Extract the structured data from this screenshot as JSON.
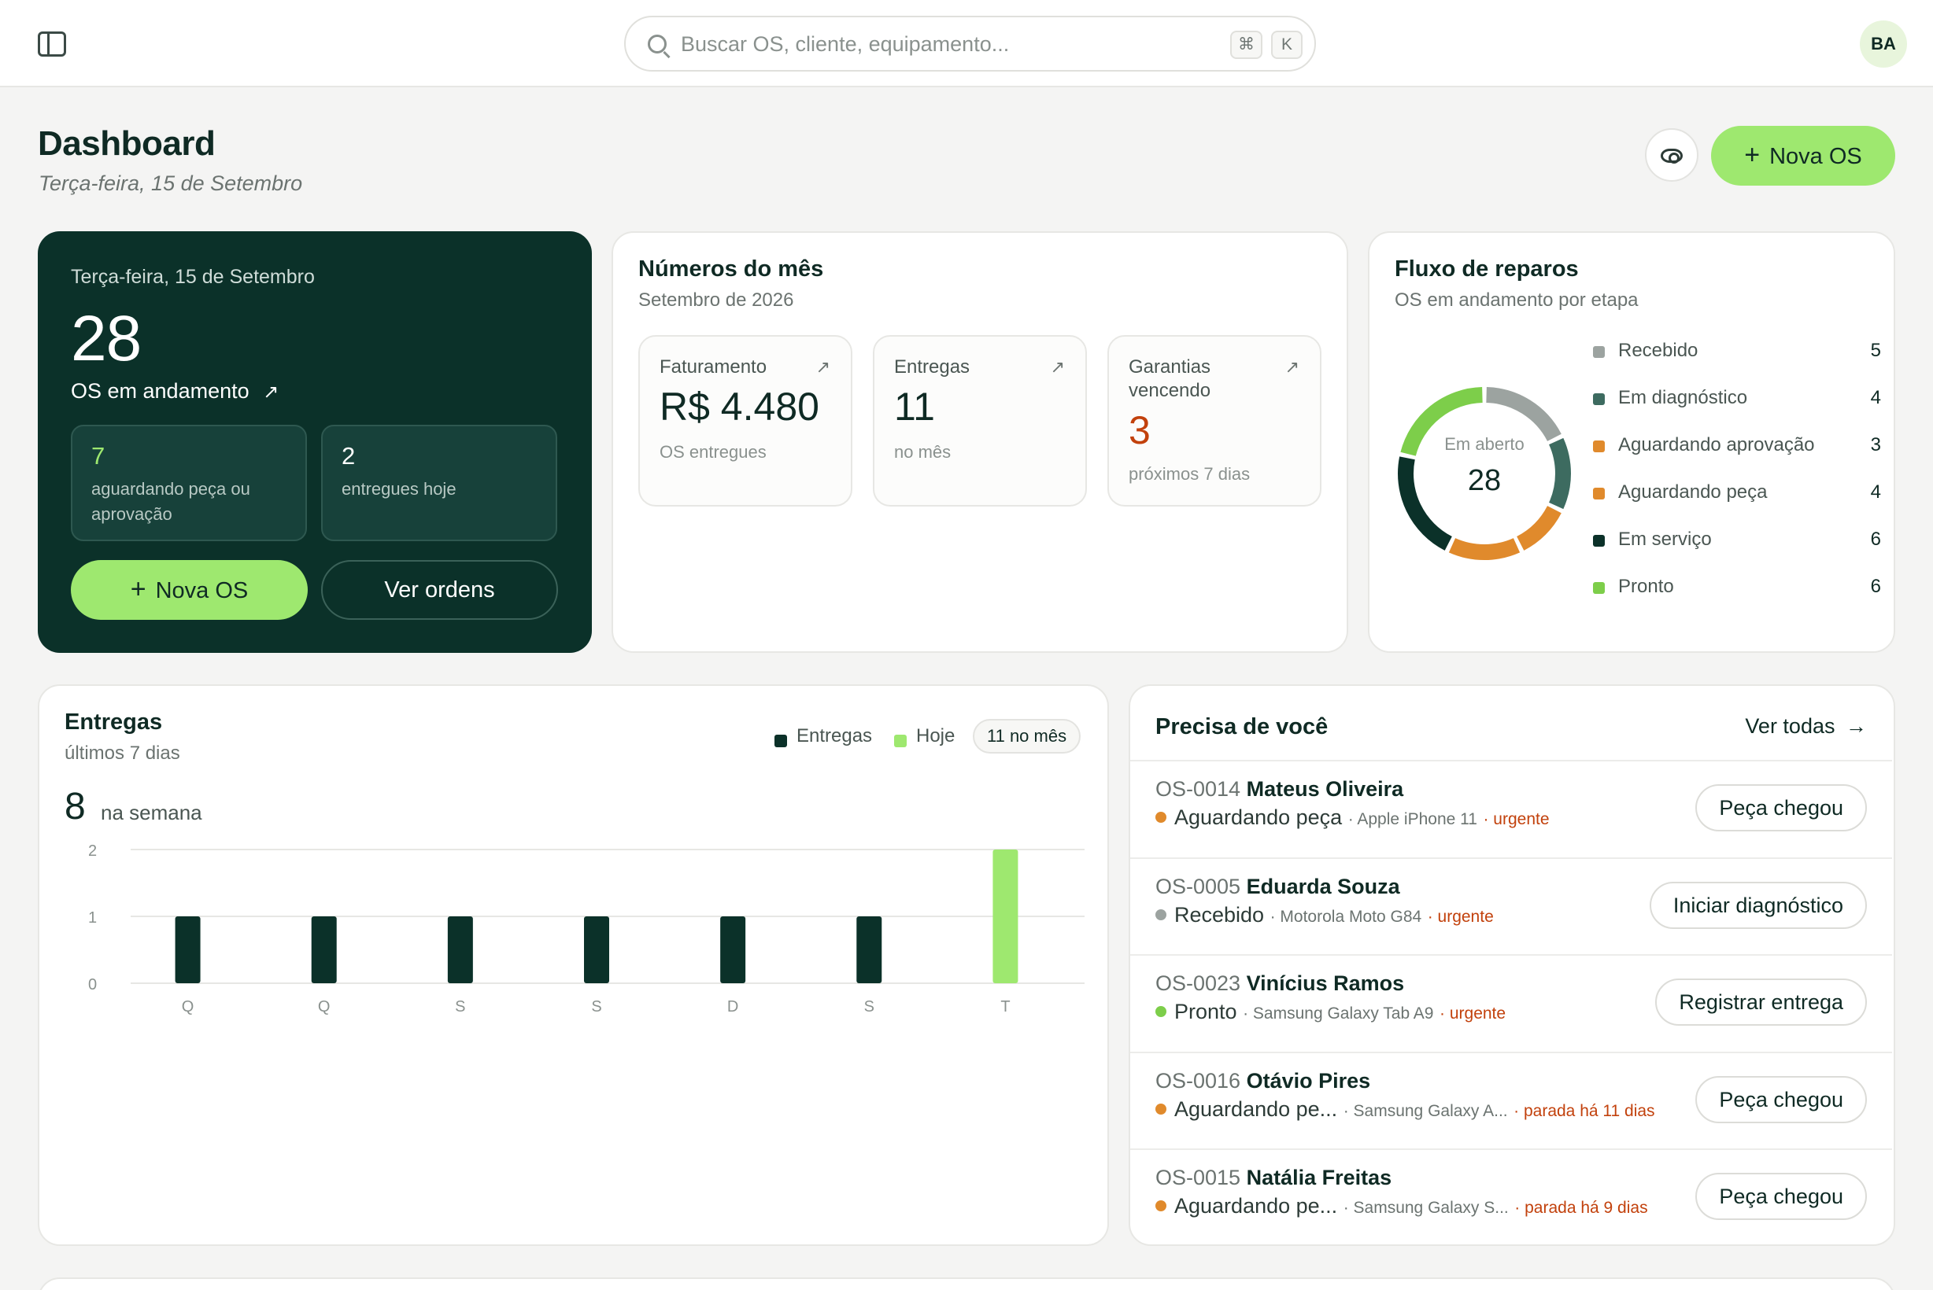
{
  "search": {
    "placeholder": "Buscar OS, cliente, equipamento...",
    "kbd_mod": "⌘",
    "kbd_key": "K"
  },
  "user": {
    "initials": "BA"
  },
  "header": {
    "title": "Dashboard",
    "date": "Terça-feira, 15 de Setembro",
    "new_os_label": "Nova OS"
  },
  "hero": {
    "date": "Terça-feira, 15 de Setembro",
    "count": "28",
    "count_label": "OS em andamento",
    "arrow": "↗",
    "box1": {
      "value": "7",
      "label": "aguardando peça ou aprovação"
    },
    "box2": {
      "value": "2",
      "label": "entregues hoje"
    },
    "new_os_label": "Nova OS",
    "view_orders_label": "Ver ordens"
  },
  "month": {
    "title": "Números do mês",
    "subtitle": "Setembro de 2026",
    "stats": [
      {
        "label": "Faturamento",
        "value": "R$ 4.480",
        "foot": "OS entregues",
        "arrow": "↗"
      },
      {
        "label": "Entregas",
        "value": "11",
        "foot": "no mês",
        "arrow": "↗"
      },
      {
        "label": "Garantias vencendo",
        "value": "3",
        "foot": "próximos 7 dias",
        "arrow": "↗"
      }
    ]
  },
  "flow": {
    "title": "Fluxo de reparos",
    "subtitle": "OS em andamento por etapa",
    "center_label": "Em aberto",
    "center_value": "28",
    "stages": [
      {
        "name": "Recebido",
        "count": 5,
        "color": "#9ca3a0"
      },
      {
        "name": "Em diagnóstico",
        "count": 4,
        "color": "#3d6b60"
      },
      {
        "name": "Aguardando aprovação",
        "count": 3,
        "color": "#e08a2c"
      },
      {
        "name": "Aguardando peça",
        "count": 4,
        "color": "#e08a2c"
      },
      {
        "name": "Em serviço",
        "count": 6,
        "color": "#0b3129"
      },
      {
        "name": "Pronto",
        "count": 6,
        "color": "#7dce4a"
      }
    ]
  },
  "deliveries": {
    "title": "Entregas",
    "subtitle": "últimos 7 dias",
    "week_value": "8",
    "week_label": "na semana",
    "legend_entregas": "Entregas",
    "legend_hoje": "Hoje",
    "pill": "11 no mês",
    "colors": {
      "entregas": "#0b3129",
      "hoje": "#9ee86f"
    },
    "chart_data": {
      "type": "bar",
      "categories": [
        "Q",
        "Q",
        "S",
        "S",
        "D",
        "S",
        "T"
      ],
      "series": [
        {
          "name": "Entregas",
          "values": [
            1,
            1,
            1,
            1,
            1,
            1,
            2
          ]
        }
      ],
      "highlight_index": 6,
      "ylim": [
        0,
        2
      ],
      "yticks": [
        "0",
        "1",
        "2"
      ],
      "grid": true
    }
  },
  "needs": {
    "title": "Precisa de você",
    "view_all": "Ver todas",
    "view_all_arrow": "→",
    "items": [
      {
        "os": "OS-0014",
        "customer": "Mateus Oliveira",
        "status": "Aguardando peça",
        "status_color": "#e08a2c",
        "device": "· Apple iPhone 11",
        "flag": "· urgente",
        "action": "Peça chegou"
      },
      {
        "os": "OS-0005",
        "customer": "Eduarda Souza",
        "status": "Recebido",
        "status_color": "#9ca3a0",
        "device": "· Motorola Moto G84",
        "flag": "· urgente",
        "action": "Iniciar diagnóstico"
      },
      {
        "os": "OS-0023",
        "customer": "Vinícius Ramos",
        "status": "Pronto",
        "status_color": "#7dce4a",
        "device": "· Samsung Galaxy Tab A9",
        "flag": "· urgente",
        "action": "Registrar entrega"
      },
      {
        "os": "OS-0016",
        "customer": "Otávio Pires",
        "status": "Aguardando pe...",
        "status_color": "#e08a2c",
        "device": "· Samsung Galaxy A...",
        "flag": "· parada há 11 dias",
        "action": "Peça chegou"
      },
      {
        "os": "OS-0015",
        "customer": "Natália Freitas",
        "status": "Aguardando pe...",
        "status_color": "#e08a2c",
        "device": "· Samsung Galaxy S...",
        "flag": "· parada há 9 dias",
        "action": "Peça chegou"
      }
    ]
  }
}
